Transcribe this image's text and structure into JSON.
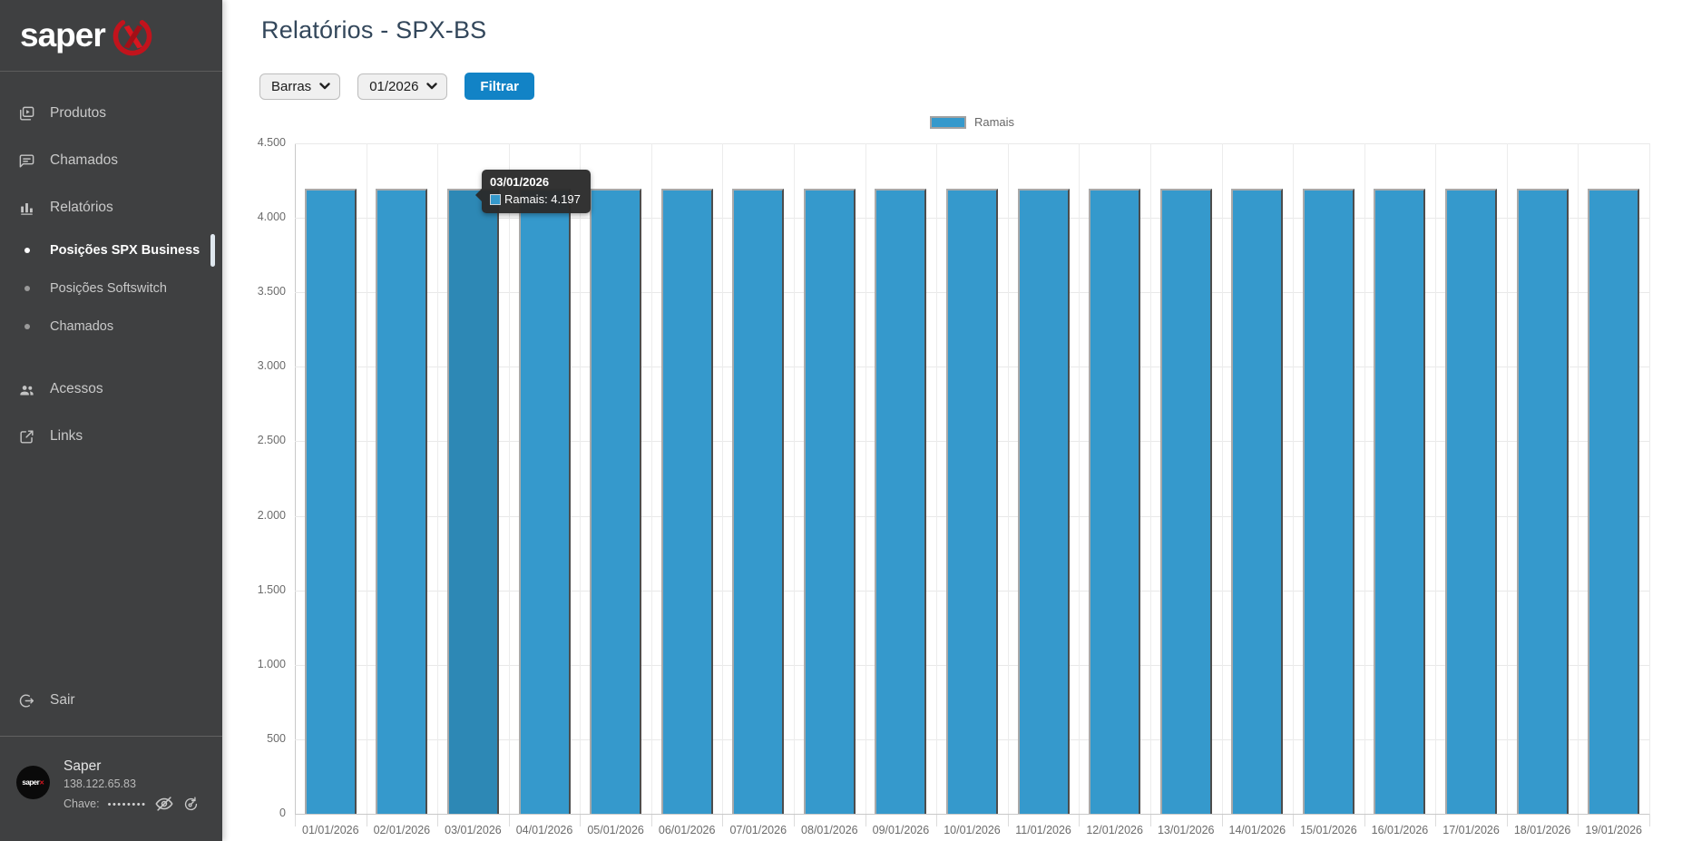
{
  "sidebar": {
    "logo_text": "saper",
    "nav": [
      {
        "label": "Produtos",
        "icon": "products",
        "type": "item"
      },
      {
        "label": "Chamados",
        "icon": "chat",
        "type": "item"
      },
      {
        "label": "Relatórios",
        "icon": "reports",
        "type": "item"
      },
      {
        "label": "Posições SPX Business",
        "type": "subitem",
        "active": true
      },
      {
        "label": "Posições Softswitch",
        "type": "subitem"
      },
      {
        "label": "Chamados",
        "type": "subitem"
      },
      {
        "label": "Acessos",
        "icon": "people",
        "type": "item",
        "gap": true
      },
      {
        "label": "Links",
        "icon": "link",
        "type": "item"
      }
    ],
    "logout_label": "Sair",
    "user": {
      "name": "Saper",
      "ip": "138.122.65.83",
      "key_label": "Chave:",
      "key_mask": "••••••••"
    }
  },
  "header": {
    "title": "Relatórios - SPX-BS"
  },
  "filters": {
    "chart_type_value": "Barras",
    "period_value": "01/2026",
    "submit_label": "Filtrar"
  },
  "colors": {
    "accent_blue": "#1283c6",
    "bar": "#3599cc",
    "bar_highlight": "#2d88b5",
    "sidebar_bg": "#3f4041",
    "tooltip_bg": "#2b2b2b"
  },
  "chart_data": {
    "type": "bar",
    "title": "",
    "categories": [
      "01/01/2026",
      "02/01/2026",
      "03/01/2026",
      "04/01/2026",
      "05/01/2026",
      "06/01/2026",
      "07/01/2026",
      "08/01/2026",
      "09/01/2026",
      "10/01/2026",
      "11/01/2026",
      "12/01/2026",
      "13/01/2026",
      "14/01/2026",
      "15/01/2026",
      "16/01/2026",
      "17/01/2026",
      "18/01/2026",
      "19/01/2026"
    ],
    "series": [
      {
        "name": "Ramais",
        "values": [
          4197,
          4197,
          4197,
          4197,
          4197,
          4197,
          4197,
          4197,
          4197,
          4197,
          4197,
          4197,
          4197,
          4197,
          4197,
          4197,
          4197,
          4197,
          4197
        ]
      }
    ],
    "xlabel": "",
    "ylabel": "",
    "ylim": [
      0,
      4500
    ],
    "ytick_step": 500,
    "grid": true,
    "legend_position": "top-center",
    "legend": [
      {
        "label": "Ramais"
      }
    ],
    "highlighted_index": 2,
    "tooltip": {
      "title": "03/01/2026",
      "text": "Ramais: 4.197"
    }
  }
}
